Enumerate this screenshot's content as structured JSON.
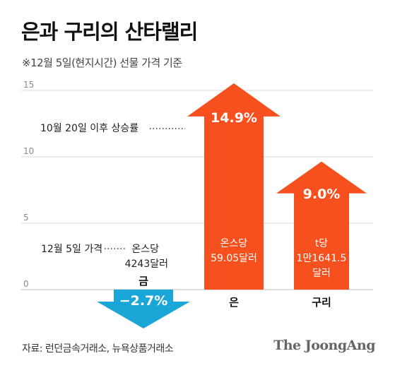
{
  "title": "은과 구리의 산타랠리",
  "subtitle": "※12월 5일(현지시간) 선물 가격 기준",
  "footer": {
    "source": "자료: 런던금속거래소, 뉴욕상품거래소",
    "brand": "The JoongAng"
  },
  "colors": {
    "up": "#f5501e",
    "down": "#1aa7d8",
    "grid": "#d9d9d9",
    "axis_text": "#8a8a8a"
  },
  "annotations": {
    "rise_label": "10월 20일 이후 상승률",
    "price_label": "12월 5일 가격"
  },
  "chart_data": {
    "type": "bar",
    "title": "은과 구리의 산타랠리",
    "subtitle": "※12월 5일(현지시간) 선물 가격 기준",
    "categories": [
      "금",
      "은",
      "구리"
    ],
    "values": [
      -2.7,
      14.9,
      9.0
    ],
    "value_labels": [
      "−2.7%",
      "14.9%",
      "9.0%"
    ],
    "prices": [
      [
        "온스당",
        "4243달러"
      ],
      [
        "온스당",
        "59.05달러"
      ],
      [
        "t당",
        "1만1641.5",
        "달러"
      ]
    ],
    "ylim": [
      -4,
      15
    ],
    "yticks": [
      0,
      5,
      10,
      15
    ],
    "grid": true,
    "unit": "%"
  }
}
